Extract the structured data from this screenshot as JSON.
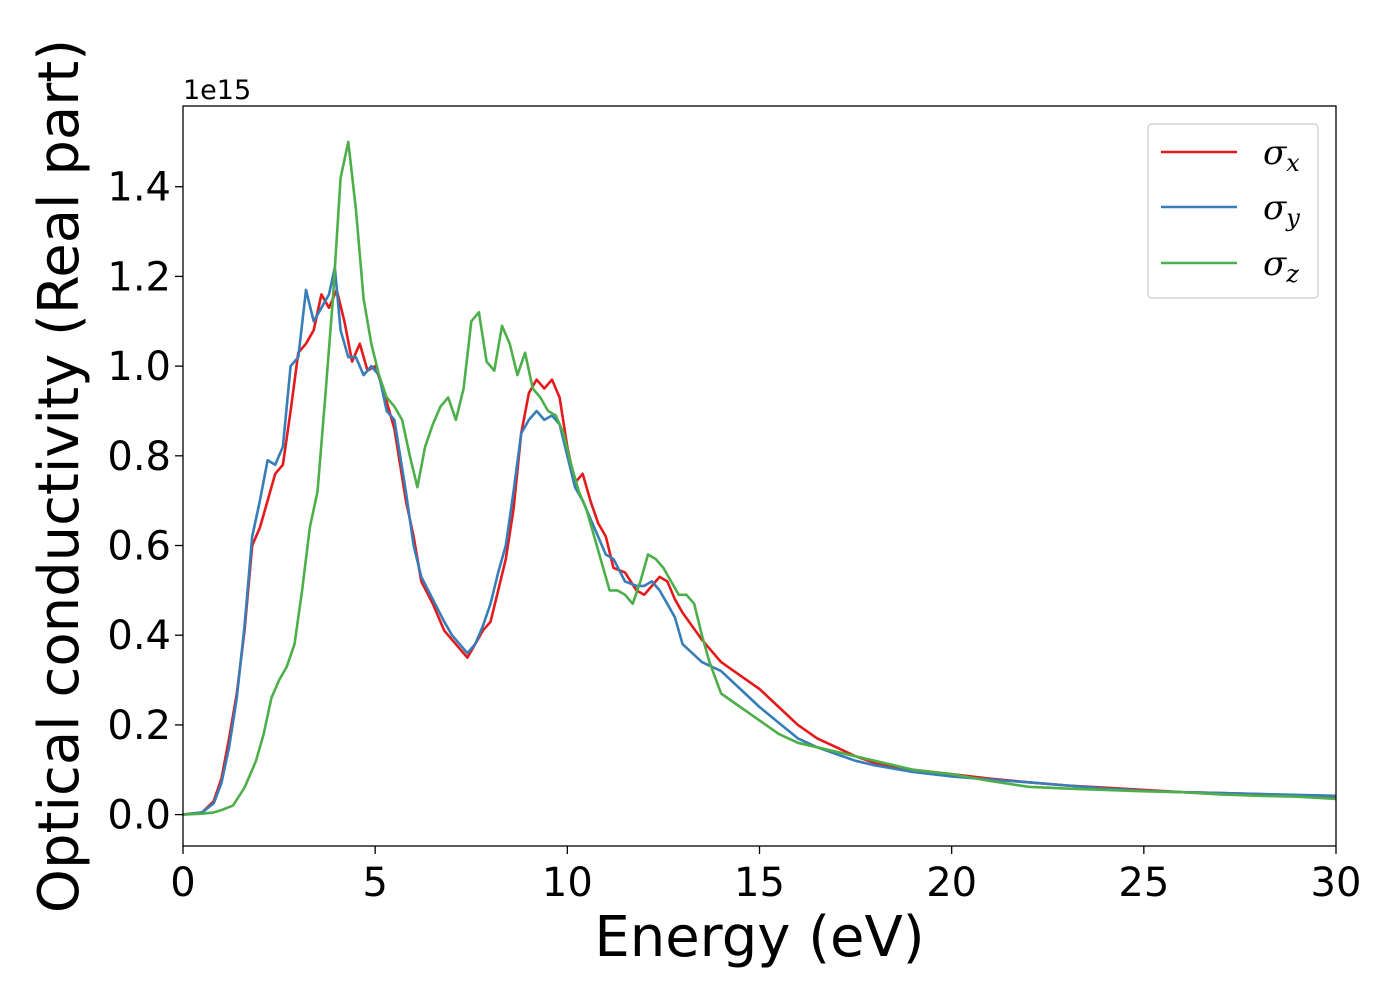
{
  "chart_data": {
    "type": "line",
    "xlabel": "Energy (eV)",
    "ylabel": "Optical conductivity (Real part)",
    "y_offset_label": "1e15",
    "xlim": [
      0,
      30
    ],
    "ylim": [
      -0.07,
      1.58
    ],
    "x_ticks": [
      0,
      5,
      10,
      15,
      20,
      25,
      30
    ],
    "x_tick_labels": [
      "0",
      "5",
      "10",
      "15",
      "20",
      "25",
      "30"
    ],
    "y_ticks": [
      0.0,
      0.2,
      0.4,
      0.6,
      0.8,
      1.0,
      1.2,
      1.4
    ],
    "y_tick_labels": [
      "0.0",
      "0.2",
      "0.4",
      "0.6",
      "0.8",
      "1.0",
      "1.2",
      "1.4"
    ],
    "grid": false,
    "legend_position": "top-right",
    "series": [
      {
        "name": "σx",
        "label_base": "σ",
        "label_sub": "x",
        "color": "#e41a1c",
        "x": [
          0,
          0.5,
          0.8,
          1.0,
          1.2,
          1.4,
          1.6,
          1.8,
          2.0,
          2.2,
          2.4,
          2.6,
          2.8,
          3.0,
          3.2,
          3.4,
          3.6,
          3.8,
          4.0,
          4.2,
          4.4,
          4.6,
          4.8,
          5.0,
          5.2,
          5.5,
          5.8,
          6.0,
          6.2,
          6.5,
          6.8,
          7.0,
          7.2,
          7.4,
          7.6,
          7.8,
          8.0,
          8.2,
          8.4,
          8.6,
          8.8,
          9.0,
          9.2,
          9.4,
          9.6,
          9.8,
          10.0,
          10.2,
          10.4,
          10.6,
          10.8,
          11.0,
          11.2,
          11.5,
          11.8,
          12.0,
          12.2,
          12.4,
          12.6,
          12.8,
          13.0,
          13.5,
          14.0,
          14.5,
          15.0,
          15.5,
          16.0,
          16.5,
          17.0,
          17.5,
          18.0,
          19.0,
          20.0,
          21.0,
          22.0,
          23.0,
          24.0,
          25.0,
          26.0,
          27.0,
          28.0,
          29.0,
          30.0
        ],
        "y": [
          0.0,
          0.005,
          0.03,
          0.08,
          0.17,
          0.27,
          0.41,
          0.6,
          0.64,
          0.7,
          0.76,
          0.78,
          0.9,
          1.03,
          1.05,
          1.08,
          1.16,
          1.13,
          1.17,
          1.1,
          1.01,
          1.05,
          0.99,
          1.0,
          0.95,
          0.86,
          0.7,
          0.62,
          0.52,
          0.47,
          0.41,
          0.39,
          0.37,
          0.35,
          0.38,
          0.41,
          0.43,
          0.5,
          0.57,
          0.68,
          0.85,
          0.94,
          0.97,
          0.95,
          0.97,
          0.93,
          0.82,
          0.74,
          0.76,
          0.7,
          0.65,
          0.62,
          0.55,
          0.54,
          0.5,
          0.49,
          0.51,
          0.53,
          0.52,
          0.48,
          0.45,
          0.39,
          0.34,
          0.31,
          0.28,
          0.24,
          0.2,
          0.17,
          0.15,
          0.13,
          0.115,
          0.1,
          0.09,
          0.08,
          0.072,
          0.065,
          0.06,
          0.055,
          0.05,
          0.048,
          0.046,
          0.043,
          0.04
        ]
      },
      {
        "name": "σy",
        "label_base": "σ",
        "label_sub": "y",
        "color": "#377eb8",
        "x": [
          0,
          0.5,
          0.8,
          1.0,
          1.2,
          1.4,
          1.6,
          1.8,
          2.0,
          2.2,
          2.4,
          2.6,
          2.8,
          3.0,
          3.2,
          3.4,
          3.6,
          3.8,
          3.95,
          4.1,
          4.3,
          4.5,
          4.7,
          4.9,
          5.1,
          5.3,
          5.5,
          5.8,
          6.0,
          6.2,
          6.5,
          6.8,
          7.0,
          7.2,
          7.4,
          7.6,
          7.8,
          8.0,
          8.2,
          8.4,
          8.6,
          8.8,
          9.0,
          9.2,
          9.4,
          9.6,
          9.8,
          10.0,
          10.2,
          10.4,
          10.6,
          10.8,
          11.0,
          11.2,
          11.5,
          11.8,
          12.0,
          12.2,
          12.4,
          12.6,
          12.8,
          13.0,
          13.5,
          14.0,
          14.5,
          15.0,
          15.5,
          16.0,
          16.5,
          17.0,
          17.5,
          18.0,
          19.0,
          20.0,
          21.0,
          22.0,
          23.0,
          24.0,
          25.0,
          26.0,
          27.0,
          28.0,
          29.0,
          30.0
        ],
        "y": [
          0.0,
          0.005,
          0.025,
          0.07,
          0.15,
          0.26,
          0.42,
          0.62,
          0.7,
          0.79,
          0.78,
          0.82,
          1.0,
          1.02,
          1.17,
          1.1,
          1.13,
          1.16,
          1.22,
          1.08,
          1.02,
          1.02,
          0.98,
          1.0,
          0.98,
          0.9,
          0.88,
          0.72,
          0.6,
          0.53,
          0.48,
          0.43,
          0.4,
          0.38,
          0.36,
          0.38,
          0.42,
          0.47,
          0.54,
          0.6,
          0.72,
          0.85,
          0.88,
          0.9,
          0.88,
          0.89,
          0.87,
          0.8,
          0.73,
          0.7,
          0.66,
          0.62,
          0.58,
          0.57,
          0.52,
          0.51,
          0.51,
          0.52,
          0.5,
          0.47,
          0.44,
          0.38,
          0.34,
          0.32,
          0.28,
          0.24,
          0.205,
          0.17,
          0.15,
          0.135,
          0.12,
          0.11,
          0.095,
          0.085,
          0.078,
          0.072,
          0.065,
          0.058,
          0.053,
          0.05,
          0.048,
          0.046,
          0.044,
          0.042
        ]
      },
      {
        "name": "σz",
        "label_base": "σ",
        "label_sub": "z",
        "color": "#4daf4a",
        "x": [
          0,
          0.5,
          0.8,
          1.0,
          1.3,
          1.6,
          1.9,
          2.1,
          2.3,
          2.5,
          2.7,
          2.9,
          3.1,
          3.3,
          3.5,
          3.7,
          3.9,
          4.1,
          4.3,
          4.5,
          4.7,
          4.9,
          5.1,
          5.3,
          5.5,
          5.7,
          5.9,
          6.1,
          6.3,
          6.5,
          6.7,
          6.9,
          7.1,
          7.3,
          7.5,
          7.7,
          7.9,
          8.1,
          8.3,
          8.5,
          8.7,
          8.9,
          9.1,
          9.3,
          9.5,
          9.7,
          9.9,
          10.1,
          10.3,
          10.5,
          10.7,
          10.9,
          11.1,
          11.3,
          11.5,
          11.7,
          11.9,
          12.1,
          12.3,
          12.5,
          12.7,
          12.9,
          13.1,
          13.3,
          13.5,
          13.7,
          14.0,
          14.5,
          15.0,
          15.5,
          16.0,
          16.5,
          17.0,
          17.5,
          18.0,
          19.0,
          20.0,
          21.0,
          22.0,
          23.0,
          24.0,
          25.0,
          26.0,
          27.0,
          28.0,
          29.0,
          30.0
        ],
        "y": [
          0.0,
          0.002,
          0.005,
          0.01,
          0.02,
          0.06,
          0.12,
          0.18,
          0.26,
          0.3,
          0.33,
          0.38,
          0.5,
          0.64,
          0.72,
          0.93,
          1.15,
          1.42,
          1.5,
          1.35,
          1.15,
          1.05,
          0.98,
          0.93,
          0.91,
          0.88,
          0.8,
          0.73,
          0.82,
          0.87,
          0.91,
          0.93,
          0.88,
          0.95,
          1.1,
          1.12,
          1.01,
          0.99,
          1.09,
          1.05,
          0.98,
          1.03,
          0.95,
          0.93,
          0.9,
          0.89,
          0.85,
          0.78,
          0.72,
          0.68,
          0.62,
          0.56,
          0.5,
          0.5,
          0.49,
          0.47,
          0.52,
          0.58,
          0.57,
          0.55,
          0.52,
          0.49,
          0.49,
          0.47,
          0.4,
          0.34,
          0.27,
          0.24,
          0.21,
          0.18,
          0.16,
          0.15,
          0.14,
          0.13,
          0.12,
          0.1,
          0.09,
          0.075,
          0.062,
          0.058,
          0.055,
          0.052,
          0.05,
          0.045,
          0.042,
          0.04,
          0.035
        ]
      }
    ]
  }
}
